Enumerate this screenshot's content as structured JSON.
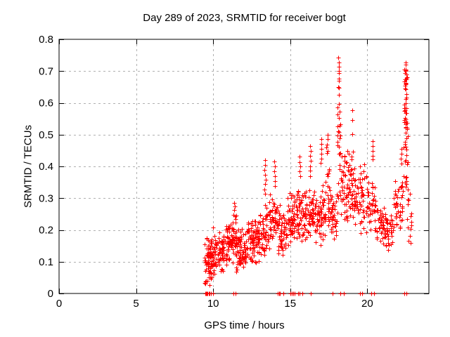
{
  "colors": {
    "marker": "#ff0000",
    "grid": "#b0b0b0",
    "axis": "#000000",
    "background": "#ffffff",
    "text": "#000000"
  },
  "chart_data": {
    "type": "scatter",
    "marker": "plus",
    "title": "Day 289 of 2023, SRMTID for receiver bogt",
    "xlabel": "GPS time / hours",
    "ylabel": "SRMTID / TECUs",
    "xlim": [
      0,
      24
    ],
    "ylim": [
      0,
      0.8
    ],
    "xticks": [
      0,
      5,
      10,
      15,
      20
    ],
    "xtick_labels": [
      "0",
      "5",
      "10",
      "15",
      "20"
    ],
    "yticks": [
      0,
      0.1,
      0.2,
      0.3,
      0.4,
      0.5,
      0.6,
      0.7,
      0.8
    ],
    "ytick_labels": [
      "0",
      "0.1",
      "0.2",
      "0.3",
      "0.4",
      "0.5",
      "0.6",
      "0.7",
      "0.8"
    ],
    "grid": true,
    "legend": "none",
    "seed": 20231016,
    "point_clusters": [
      [
        9.45,
        9.92,
        75,
        0.02,
        0.19,
        0
      ],
      [
        9.9,
        10.15,
        30,
        0.04,
        0.215,
        0
      ],
      [
        10.1,
        10.7,
        55,
        0.06,
        0.2,
        0
      ],
      [
        10.7,
        11.3,
        60,
        0.08,
        0.235,
        0
      ],
      [
        11.3,
        11.5,
        22,
        0.1,
        0.27,
        0
      ],
      [
        11.5,
        12.2,
        70,
        0.05,
        0.215,
        0
      ],
      [
        12.2,
        13.0,
        80,
        0.09,
        0.24,
        0
      ],
      [
        13.0,
        13.6,
        50,
        0.1,
        0.3,
        0
      ],
      [
        13.6,
        14.2,
        50,
        0.13,
        0.33,
        0
      ],
      [
        14.2,
        14.75,
        45,
        0.07,
        0.3,
        0
      ],
      [
        14.75,
        15.3,
        50,
        0.14,
        0.33,
        0
      ],
      [
        15.3,
        16.0,
        65,
        0.15,
        0.35,
        0
      ],
      [
        16.0,
        16.55,
        45,
        0.15,
        0.35,
        0
      ],
      [
        16.55,
        17.3,
        65,
        0.14,
        0.35,
        0
      ],
      [
        17.3,
        17.55,
        14,
        0.28,
        0.46,
        1
      ],
      [
        17.45,
        18.05,
        50,
        0.15,
        0.35,
        0
      ],
      [
        18.05,
        18.3,
        20,
        0.3,
        0.68,
        1
      ],
      [
        18.3,
        19.0,
        65,
        0.2,
        0.46,
        0
      ],
      [
        19.0,
        20.0,
        70,
        0.18,
        0.42,
        0
      ],
      [
        20.0,
        20.6,
        40,
        0.18,
        0.37,
        0
      ],
      [
        20.6,
        21.1,
        35,
        0.14,
        0.3,
        0
      ],
      [
        21.1,
        21.7,
        40,
        0.13,
        0.27,
        0
      ],
      [
        21.7,
        22.3,
        40,
        0.17,
        0.38,
        0
      ],
      [
        22.38,
        22.62,
        35,
        0.45,
        0.72,
        1
      ],
      [
        22.35,
        22.65,
        14,
        0.32,
        0.47,
        1
      ],
      [
        22.55,
        22.88,
        14,
        0.14,
        0.34,
        0
      ]
    ],
    "outlier_points": [
      [
        11.38,
        0.285
      ],
      [
        11.4,
        0.275
      ],
      [
        11.36,
        0.262
      ],
      [
        13.36,
        0.42
      ],
      [
        13.38,
        0.404
      ],
      [
        13.34,
        0.389
      ],
      [
        13.37,
        0.373
      ],
      [
        13.4,
        0.358
      ],
      [
        13.35,
        0.344
      ],
      [
        13.33,
        0.328
      ],
      [
        13.39,
        0.314
      ],
      [
        13.98,
        0.415
      ],
      [
        14.0,
        0.399
      ],
      [
        13.96,
        0.384
      ],
      [
        14.02,
        0.368
      ],
      [
        13.99,
        0.353
      ],
      [
        14.01,
        0.338
      ],
      [
        15.62,
        0.43
      ],
      [
        15.6,
        0.414
      ],
      [
        15.63,
        0.399
      ],
      [
        15.61,
        0.384
      ],
      [
        15.64,
        0.368
      ],
      [
        16.3,
        0.465
      ],
      [
        16.32,
        0.449
      ],
      [
        16.28,
        0.434
      ],
      [
        16.33,
        0.418
      ],
      [
        16.3,
        0.401
      ],
      [
        16.31,
        0.386
      ],
      [
        16.29,
        0.369
      ],
      [
        17.02,
        0.486
      ],
      [
        17.0,
        0.471
      ],
      [
        17.04,
        0.455
      ],
      [
        17.01,
        0.44
      ],
      [
        17.03,
        0.425
      ],
      [
        16.99,
        0.41
      ],
      [
        17.42,
        0.5
      ],
      [
        17.44,
        0.486
      ],
      [
        17.4,
        0.468
      ],
      [
        18.13,
        0.742
      ],
      [
        18.15,
        0.728
      ],
      [
        18.14,
        0.714
      ],
      [
        18.16,
        0.701
      ],
      [
        18.17,
        0.694
      ],
      [
        18.15,
        0.676
      ],
      [
        18.14,
        0.67
      ],
      [
        18.16,
        0.648
      ],
      [
        18.18,
        0.625
      ],
      [
        18.15,
        0.596
      ],
      [
        18.2,
        0.572
      ],
      [
        18.17,
        0.552
      ],
      [
        18.19,
        0.528
      ],
      [
        18.16,
        0.508
      ],
      [
        18.2,
        0.488
      ],
      [
        18.18,
        0.462
      ],
      [
        18.22,
        0.44
      ],
      [
        19.02,
        0.576
      ],
      [
        19.04,
        0.546
      ],
      [
        19.03,
        0.502
      ],
      [
        19.05,
        0.447
      ],
      [
        19.0,
        0.432
      ],
      [
        20.35,
        0.48
      ],
      [
        20.37,
        0.464
      ],
      [
        20.33,
        0.449
      ],
      [
        20.36,
        0.434
      ],
      [
        20.34,
        0.423
      ],
      [
        22.2,
        0.455
      ],
      [
        22.22,
        0.44
      ],
      [
        22.18,
        0.424
      ],
      [
        22.21,
        0.408
      ],
      [
        22.48,
        0.728
      ],
      [
        22.5,
        0.702
      ],
      [
        22.52,
        0.69
      ],
      [
        22.47,
        0.673
      ],
      [
        22.51,
        0.658
      ],
      [
        22.49,
        0.643
      ],
      [
        22.53,
        0.628
      ],
      [
        22.5,
        0.613
      ],
      [
        22.48,
        0.598
      ],
      [
        22.52,
        0.584
      ],
      [
        22.55,
        0.567
      ],
      [
        22.46,
        0.552
      ],
      [
        22.54,
        0.536
      ],
      [
        22.49,
        0.521
      ],
      [
        22.51,
        0.505
      ],
      [
        22.56,
        0.488
      ],
      [
        22.45,
        0.47
      ],
      [
        22.53,
        0.452
      ]
    ],
    "zero_points_x": [
      9.48,
      9.52,
      9.56,
      9.61,
      9.65,
      9.7,
      9.78,
      9.85,
      10.0,
      11.32,
      11.45,
      14.2,
      14.27,
      14.33,
      14.55,
      15.03,
      15.1,
      15.18,
      15.28,
      15.5,
      15.6,
      15.78,
      16.33,
      17.76,
      18.23,
      18.48,
      19.52,
      19.68,
      20.28,
      20.45,
      22.42,
      22.55
    ]
  }
}
